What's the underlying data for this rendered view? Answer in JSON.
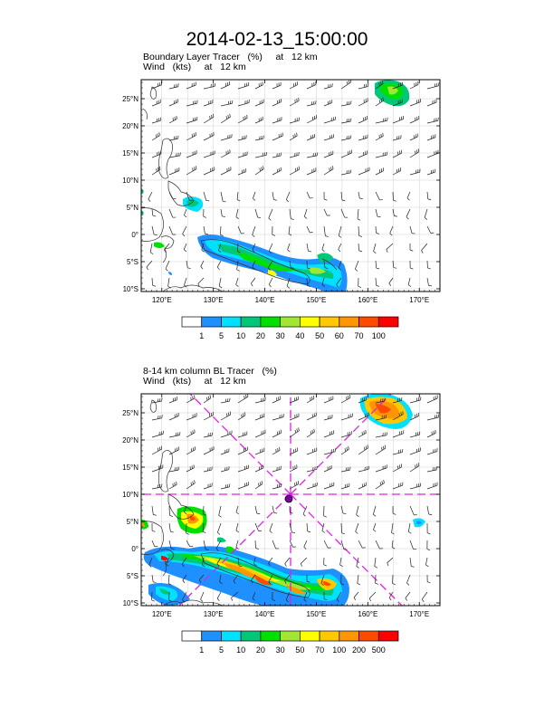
{
  "title": "2014-02-13_15:00:00",
  "panels": [
    {
      "title_line1": "Boundary Layer Tracer   (%)     at   12 km",
      "title_line2": "Wind   (kts)     at   12 km",
      "lat_labels": [
        "25°N",
        "20°N",
        "15°N",
        "10°N",
        "5°N",
        "0°",
        "5°S",
        "10°S"
      ],
      "lon_labels": [
        "120°E",
        "130°E",
        "140°E",
        "150°E",
        "160°E",
        "170°E"
      ],
      "colorbar_levels": [
        "1",
        "5",
        "10",
        "20",
        "30",
        "40",
        "50",
        "60",
        "70",
        "100"
      ],
      "colorbar_colors": [
        "#ffffff",
        "#1e90ff",
        "#00e0ff",
        "#00c878",
        "#00e000",
        "#a0e632",
        "#ffff00",
        "#ffc800",
        "#ff9600",
        "#ff4b00",
        "#ff0000"
      ]
    },
    {
      "title_line1": "8-14 km column BL Tracer   (%)",
      "title_line2": "Wind   (kts)     at   12 km",
      "lat_labels": [
        "25°N",
        "20°N",
        "15°N",
        "10°N",
        "5°N",
        "0°",
        "5°S",
        "10°S"
      ],
      "lon_labels": [
        "120°E",
        "130°E",
        "140°E",
        "150°E",
        "160°E",
        "170°E"
      ],
      "colorbar_levels": [
        "1",
        "5",
        "10",
        "20",
        "30",
        "50",
        "70",
        "100",
        "200",
        "500"
      ],
      "colorbar_colors": [
        "#ffffff",
        "#1e90ff",
        "#00e0ff",
        "#00c878",
        "#00e000",
        "#a0e632",
        "#ffff00",
        "#ffc800",
        "#ff9600",
        "#ff4b00",
        "#ff0000"
      ]
    }
  ],
  "map_extent": {
    "lon": [
      116,
      174
    ],
    "lat": [
      -10.5,
      28.5
    ]
  },
  "cyclone_center": {
    "lon": 145,
    "lat": 10
  }
}
